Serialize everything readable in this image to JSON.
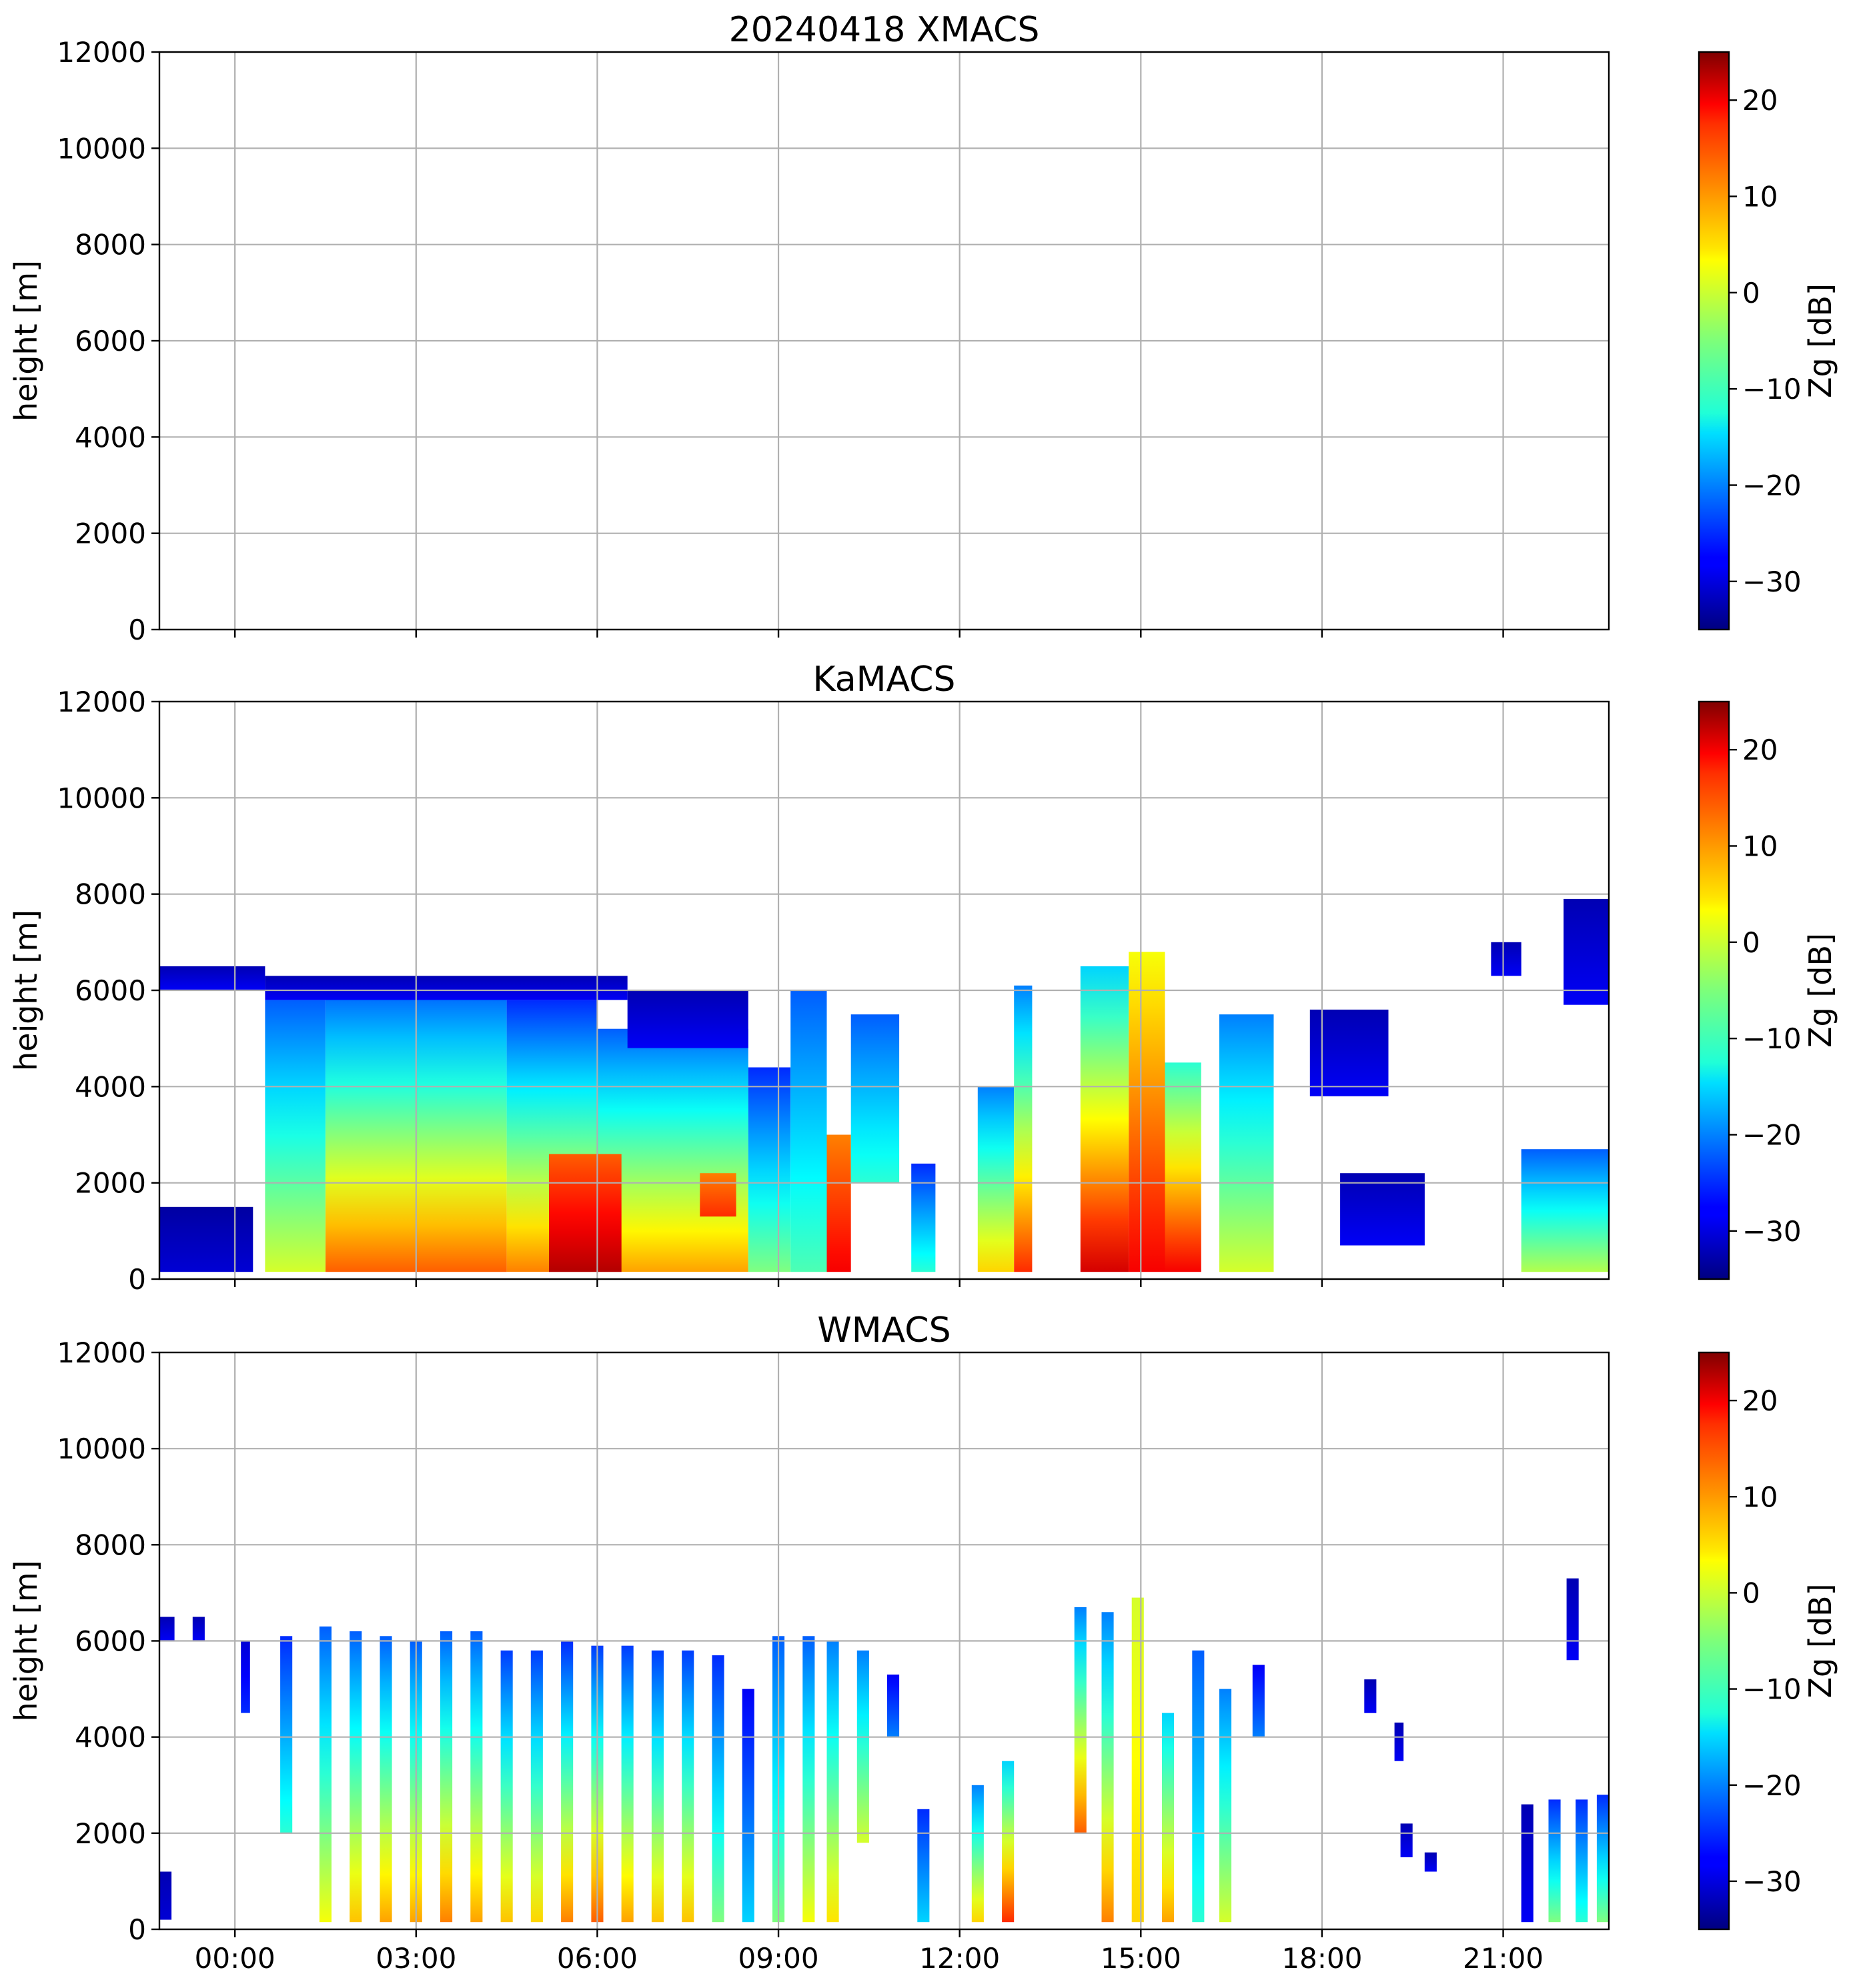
{
  "chart_data": [
    {
      "type": "heatmap",
      "title": "20240418 XMACS",
      "xlabel": "",
      "ylabel": "height [m]",
      "ylim": [
        0,
        12000
      ],
      "xlim_hours": [
        -1.25,
        22.75
      ],
      "y_ticks": [
        0,
        2000,
        4000,
        6000,
        8000,
        10000,
        12000
      ],
      "x_ticks": [
        "00:00",
        "03:00",
        "06:00",
        "09:00",
        "12:00",
        "15:00",
        "18:00",
        "21:00"
      ],
      "x_tick_hours": [
        0,
        3,
        6,
        9,
        12,
        15,
        18,
        21
      ],
      "show_x_tick_labels": false,
      "grid": true,
      "colorbar": {
        "label": "Zg [dB]",
        "vmin": -35,
        "vmax": 25,
        "ticks": [
          -30,
          -20,
          -10,
          0,
          10,
          20
        ],
        "cmap": "jet"
      },
      "regions": []
    },
    {
      "type": "heatmap",
      "title": "KaMACS",
      "xlabel": "",
      "ylabel": "height [m]",
      "ylim": [
        0,
        12000
      ],
      "xlim_hours": [
        -1.25,
        22.75
      ],
      "y_ticks": [
        0,
        2000,
        4000,
        6000,
        8000,
        10000,
        12000
      ],
      "x_ticks": [
        "00:00",
        "03:00",
        "06:00",
        "09:00",
        "12:00",
        "15:00",
        "18:00",
        "21:00"
      ],
      "x_tick_hours": [
        0,
        3,
        6,
        9,
        12,
        15,
        18,
        21
      ],
      "show_x_tick_labels": false,
      "grid": true,
      "colorbar": {
        "label": "Zg [dB]",
        "vmin": -35,
        "vmax": 25,
        "ticks": [
          -30,
          -20,
          -10,
          0,
          10,
          20
        ],
        "cmap": "jet"
      },
      "regions": [
        {
          "t0": -1.25,
          "t1": 0.3,
          "h0": 150,
          "h1": 1500,
          "zbase": -30,
          "ztop": -33
        },
        {
          "t0": -1.25,
          "t1": 0.5,
          "h0": 6000,
          "h1": 6500,
          "zbase": -28,
          "ztop": -32
        },
        {
          "t0": 0.5,
          "t1": 1.5,
          "h0": 150,
          "h1": 5800,
          "zbase": 0,
          "ztop": -22
        },
        {
          "t0": 1.5,
          "t1": 4.5,
          "h0": 150,
          "h1": 6000,
          "zbase": 12,
          "ztop": -22
        },
        {
          "t0": 0.5,
          "t1": 6.5,
          "h0": 5800,
          "h1": 6300,
          "zbase": -28,
          "ztop": -32
        },
        {
          "t0": 4.5,
          "t1": 6.0,
          "h0": 150,
          "h1": 5800,
          "zbase": 10,
          "ztop": -25
        },
        {
          "t0": 6.0,
          "t1": 8.5,
          "h0": 150,
          "h1": 5200,
          "zbase": 8,
          "ztop": -22
        },
        {
          "t0": 6.5,
          "t1": 8.5,
          "h0": 4800,
          "h1": 6000,
          "zbase": -28,
          "ztop": -32
        },
        {
          "t0": 5.2,
          "t1": 6.4,
          "h0": 150,
          "h1": 2600,
          "zbase": 22,
          "ztop": 12
        },
        {
          "t0": 7.7,
          "t1": 8.3,
          "h0": 1300,
          "h1": 2200,
          "zbase": 15,
          "ztop": 10
        },
        {
          "t0": 8.5,
          "t1": 9.2,
          "h0": 150,
          "h1": 4400,
          "zbase": -5,
          "ztop": -25
        },
        {
          "t0": 9.2,
          "t1": 9.8,
          "h0": 150,
          "h1": 6000,
          "zbase": -8,
          "ztop": -22
        },
        {
          "t0": 9.8,
          "t1": 10.2,
          "h0": 150,
          "h1": 3000,
          "zbase": 18,
          "ztop": 10
        },
        {
          "t0": 10.2,
          "t1": 11.0,
          "h0": 2000,
          "h1": 5500,
          "zbase": -10,
          "ztop": -22
        },
        {
          "t0": 11.2,
          "t1": 11.6,
          "h0": 150,
          "h1": 2400,
          "zbase": -10,
          "ztop": -25
        },
        {
          "t0": 12.3,
          "t1": 12.9,
          "h0": 150,
          "h1": 4000,
          "zbase": 5,
          "ztop": -20
        },
        {
          "t0": 12.9,
          "t1": 13.2,
          "h0": 150,
          "h1": 6100,
          "zbase": 15,
          "ztop": -20
        },
        {
          "t0": 14.0,
          "t1": 14.8,
          "h0": 150,
          "h1": 6500,
          "zbase": 20,
          "ztop": -15
        },
        {
          "t0": 14.8,
          "t1": 15.4,
          "h0": 150,
          "h1": 6800,
          "zbase": 18,
          "ztop": 2
        },
        {
          "t0": 15.4,
          "t1": 16.0,
          "h0": 150,
          "h1": 4500,
          "zbase": 18,
          "ztop": -10
        },
        {
          "t0": 16.3,
          "t1": 17.2,
          "h0": 150,
          "h1": 5500,
          "zbase": 0,
          "ztop": -20
        },
        {
          "t0": 17.8,
          "t1": 19.1,
          "h0": 3800,
          "h1": 5600,
          "zbase": -28,
          "ztop": -32
        },
        {
          "t0": 18.3,
          "t1": 19.7,
          "h0": 700,
          "h1": 2200,
          "zbase": -28,
          "ztop": -32
        },
        {
          "t0": 20.8,
          "t1": 21.3,
          "h0": 6300,
          "h1": 7000,
          "zbase": -28,
          "ztop": -32
        },
        {
          "t0": 22.0,
          "t1": 22.75,
          "h0": 5700,
          "h1": 7900,
          "zbase": -28,
          "ztop": -32
        },
        {
          "t0": 21.3,
          "t1": 22.75,
          "h0": 150,
          "h1": 2700,
          "zbase": -2,
          "ztop": -22
        }
      ]
    },
    {
      "type": "heatmap",
      "title": "WMACS",
      "xlabel": "",
      "ylabel": "height [m]",
      "ylim": [
        0,
        12000
      ],
      "xlim_hours": [
        -1.25,
        22.75
      ],
      "y_ticks": [
        0,
        2000,
        4000,
        6000,
        8000,
        10000,
        12000
      ],
      "x_ticks": [
        "00:00",
        "03:00",
        "06:00",
        "09:00",
        "12:00",
        "15:00",
        "18:00",
        "21:00"
      ],
      "x_tick_hours": [
        0,
        3,
        6,
        9,
        12,
        15,
        18,
        21
      ],
      "show_x_tick_labels": true,
      "grid": true,
      "colorbar": {
        "label": "Zg [dB]",
        "vmin": -35,
        "vmax": 25,
        "ticks": [
          -30,
          -20,
          -10,
          0,
          10,
          20
        ],
        "cmap": "jet"
      },
      "regions": [
        {
          "t0": -1.25,
          "t1": -1.05,
          "h0": 200,
          "h1": 1200,
          "zbase": -30,
          "ztop": -32
        },
        {
          "t0": -1.25,
          "t1": -1.0,
          "h0": 6000,
          "h1": 6500,
          "zbase": -28,
          "ztop": -32
        },
        {
          "t0": -0.7,
          "t1": -0.5,
          "h0": 6000,
          "h1": 6500,
          "zbase": -28,
          "ztop": -32
        },
        {
          "t0": 0.1,
          "t1": 0.25,
          "h0": 4500,
          "h1": 6000,
          "zbase": -25,
          "ztop": -30
        },
        {
          "t0": 0.75,
          "t1": 0.95,
          "h0": 2000,
          "h1": 6100,
          "zbase": -10,
          "ztop": -25
        },
        {
          "t0": 1.4,
          "t1": 1.6,
          "h0": 150,
          "h1": 6300,
          "zbase": 2,
          "ztop": -22
        },
        {
          "t0": 1.9,
          "t1": 2.1,
          "h0": 150,
          "h1": 6200,
          "zbase": 6,
          "ztop": -22
        },
        {
          "t0": 2.4,
          "t1": 2.6,
          "h0": 150,
          "h1": 6100,
          "zbase": 8,
          "ztop": -22
        },
        {
          "t0": 2.9,
          "t1": 3.1,
          "h0": 150,
          "h1": 6000,
          "zbase": 8,
          "ztop": -22
        },
        {
          "t0": 3.4,
          "t1": 3.6,
          "h0": 150,
          "h1": 6200,
          "zbase": 10,
          "ztop": -22
        },
        {
          "t0": 3.9,
          "t1": 4.1,
          "h0": 150,
          "h1": 6200,
          "zbase": 8,
          "ztop": -22
        },
        {
          "t0": 4.4,
          "t1": 4.6,
          "h0": 150,
          "h1": 5800,
          "zbase": 6,
          "ztop": -24
        },
        {
          "t0": 4.9,
          "t1": 5.1,
          "h0": 150,
          "h1": 5800,
          "zbase": 5,
          "ztop": -24
        },
        {
          "t0": 5.4,
          "t1": 5.6,
          "h0": 150,
          "h1": 6000,
          "zbase": 10,
          "ztop": -25
        },
        {
          "t0": 5.9,
          "t1": 6.1,
          "h0": 150,
          "h1": 5900,
          "zbase": 12,
          "ztop": -24
        },
        {
          "t0": 6.4,
          "t1": 6.6,
          "h0": 150,
          "h1": 5900,
          "zbase": 8,
          "ztop": -24
        },
        {
          "t0": 6.9,
          "t1": 7.1,
          "h0": 150,
          "h1": 5800,
          "zbase": 6,
          "ztop": -24
        },
        {
          "t0": 7.4,
          "t1": 7.6,
          "h0": 150,
          "h1": 5800,
          "zbase": 6,
          "ztop": -24
        },
        {
          "t0": 7.9,
          "t1": 8.1,
          "h0": 150,
          "h1": 5700,
          "zbase": -5,
          "ztop": -25
        },
        {
          "t0": 8.4,
          "t1": 8.6,
          "h0": 150,
          "h1": 5000,
          "zbase": -15,
          "ztop": -28
        },
        {
          "t0": 8.9,
          "t1": 9.1,
          "h0": 150,
          "h1": 6100,
          "zbase": -5,
          "ztop": -22
        },
        {
          "t0": 9.4,
          "t1": 9.6,
          "h0": 150,
          "h1": 6100,
          "zbase": 2,
          "ztop": -22
        },
        {
          "t0": 9.8,
          "t1": 10.0,
          "h0": 150,
          "h1": 6000,
          "zbase": 4,
          "ztop": -20
        },
        {
          "t0": 10.3,
          "t1": 10.5,
          "h0": 1800,
          "h1": 5800,
          "zbase": 0,
          "ztop": -20
        },
        {
          "t0": 10.8,
          "t1": 11.0,
          "h0": 4000,
          "h1": 5300,
          "zbase": -20,
          "ztop": -28
        },
        {
          "t0": 11.3,
          "t1": 11.5,
          "h0": 150,
          "h1": 2500,
          "zbase": -15,
          "ztop": -25
        },
        {
          "t0": 12.2,
          "t1": 12.4,
          "h0": 150,
          "h1": 3000,
          "zbase": 5,
          "ztop": -20
        },
        {
          "t0": 12.7,
          "t1": 12.9,
          "h0": 150,
          "h1": 3500,
          "zbase": 15,
          "ztop": -15
        },
        {
          "t0": 13.9,
          "t1": 14.1,
          "h0": 2000,
          "h1": 6700,
          "zbase": 12,
          "ztop": -20
        },
        {
          "t0": 14.35,
          "t1": 14.55,
          "h0": 150,
          "h1": 6600,
          "zbase": 10,
          "ztop": -20
        },
        {
          "t0": 14.85,
          "t1": 15.05,
          "h0": 150,
          "h1": 6900,
          "zbase": 5,
          "ztop": 0
        },
        {
          "t0": 15.35,
          "t1": 15.55,
          "h0": 150,
          "h1": 4500,
          "zbase": 8,
          "ztop": -15
        },
        {
          "t0": 15.85,
          "t1": 16.05,
          "h0": 150,
          "h1": 5800,
          "zbase": -10,
          "ztop": -22
        },
        {
          "t0": 16.3,
          "t1": 16.5,
          "h0": 150,
          "h1": 5000,
          "zbase": 0,
          "ztop": -20
        },
        {
          "t0": 16.85,
          "t1": 17.05,
          "h0": 4000,
          "h1": 5500,
          "zbase": -20,
          "ztop": -28
        },
        {
          "t0": 18.7,
          "t1": 18.9,
          "h0": 4500,
          "h1": 5200,
          "zbase": -28,
          "ztop": -32
        },
        {
          "t0": 19.2,
          "t1": 19.35,
          "h0": 3500,
          "h1": 4300,
          "zbase": -28,
          "ztop": -32
        },
        {
          "t0": 19.3,
          "t1": 19.5,
          "h0": 1500,
          "h1": 2200,
          "zbase": -28,
          "ztop": -32
        },
        {
          "t0": 19.7,
          "t1": 19.9,
          "h0": 1200,
          "h1": 1600,
          "zbase": -28,
          "ztop": -32
        },
        {
          "t0": 22.05,
          "t1": 22.25,
          "h0": 5600,
          "h1": 7300,
          "zbase": -28,
          "ztop": -32
        },
        {
          "t0": 21.3,
          "t1": 21.5,
          "h0": 150,
          "h1": 2600,
          "zbase": -28,
          "ztop": -32
        },
        {
          "t0": 21.75,
          "t1": 21.95,
          "h0": 150,
          "h1": 2700,
          "zbase": -5,
          "ztop": -25
        },
        {
          "t0": 22.2,
          "t1": 22.4,
          "h0": 150,
          "h1": 2700,
          "zbase": -10,
          "ztop": -25
        },
        {
          "t0": 22.55,
          "t1": 22.75,
          "h0": 150,
          "h1": 2800,
          "zbase": -5,
          "ztop": -25
        }
      ]
    }
  ]
}
